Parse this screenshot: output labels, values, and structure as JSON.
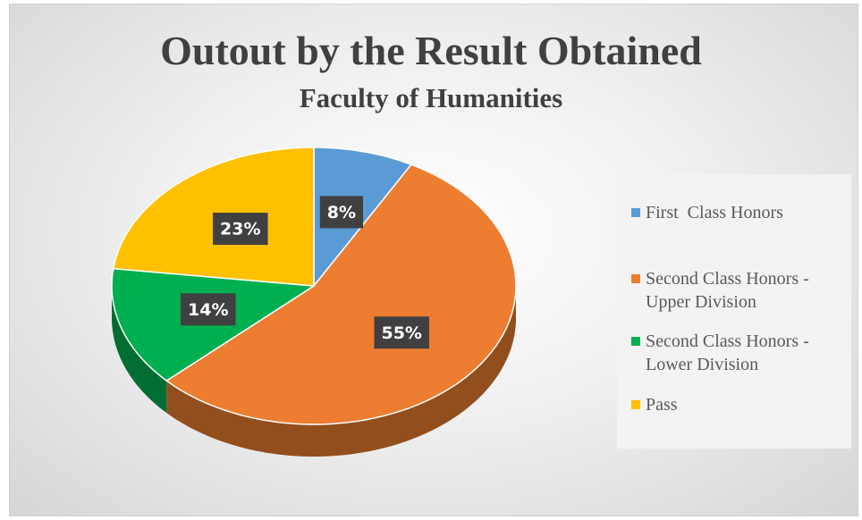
{
  "chart_data": {
    "type": "pie",
    "title": "Outout by the Result Obtained",
    "subtitle": "Faculty of Humanities",
    "categories": [
      "First  Class Honors",
      "Second Class Honors - Upper Division",
      "Second Class Honors - Lower Division",
      "Pass"
    ],
    "values": [
      8,
      55,
      14,
      23
    ],
    "value_labels": [
      "8%",
      "55%",
      "14%",
      "23%"
    ],
    "colors": [
      "#5b9bd5",
      "#ed7d31",
      "#00b050",
      "#ffc000"
    ],
    "legend": "right"
  }
}
